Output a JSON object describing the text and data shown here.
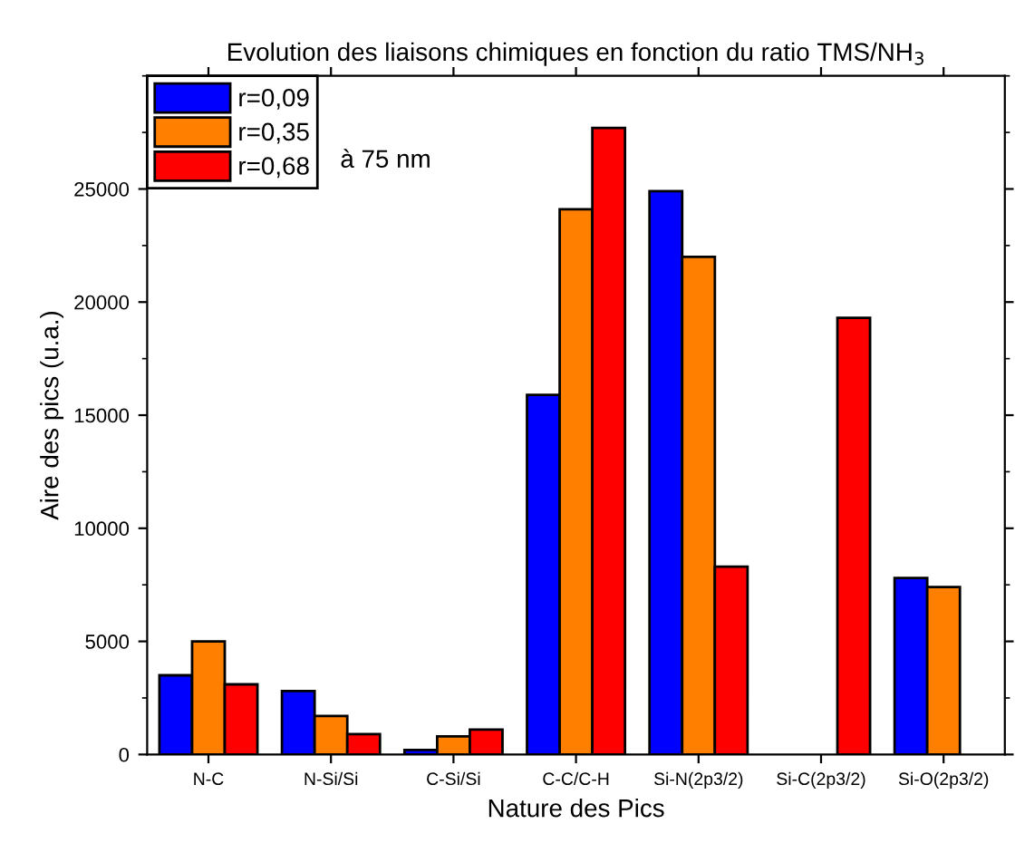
{
  "chart_data": {
    "type": "bar",
    "title": "Evolution des liaisons chimiques en fonction du ratio TMS/NH$_{3}$",
    "xlabel": "Nature des Pics",
    "ylabel": "Aire des pics (u.a.)",
    "categories": [
      "N-C",
      "N-Si/Si",
      "C-Si/Si",
      "C-C/C-H",
      "Si-N(2p3/2)",
      "Si-C(2p3/2)",
      "Si-O(2p3/2)"
    ],
    "series": [
      {
        "name": "r=0,09",
        "color": "#0000ff",
        "values": [
          3500,
          2800,
          200,
          15900,
          24900,
          null,
          7800
        ]
      },
      {
        "name": "r=0,35",
        "color": "#ff8000",
        "values": [
          5000,
          1700,
          800,
          24100,
          22000,
          null,
          7400
        ]
      },
      {
        "name": "r=0,68",
        "color": "#ff0000",
        "values": [
          3100,
          900,
          1100,
          27700,
          8300,
          19300,
          null
        ]
      }
    ],
    "ylim": [
      0,
      30000
    ],
    "yticks": [
      0,
      5000,
      10000,
      15000,
      20000,
      25000
    ],
    "annotations": [
      "à 75 nm"
    ],
    "legend": "top left",
    "grid": false
  }
}
